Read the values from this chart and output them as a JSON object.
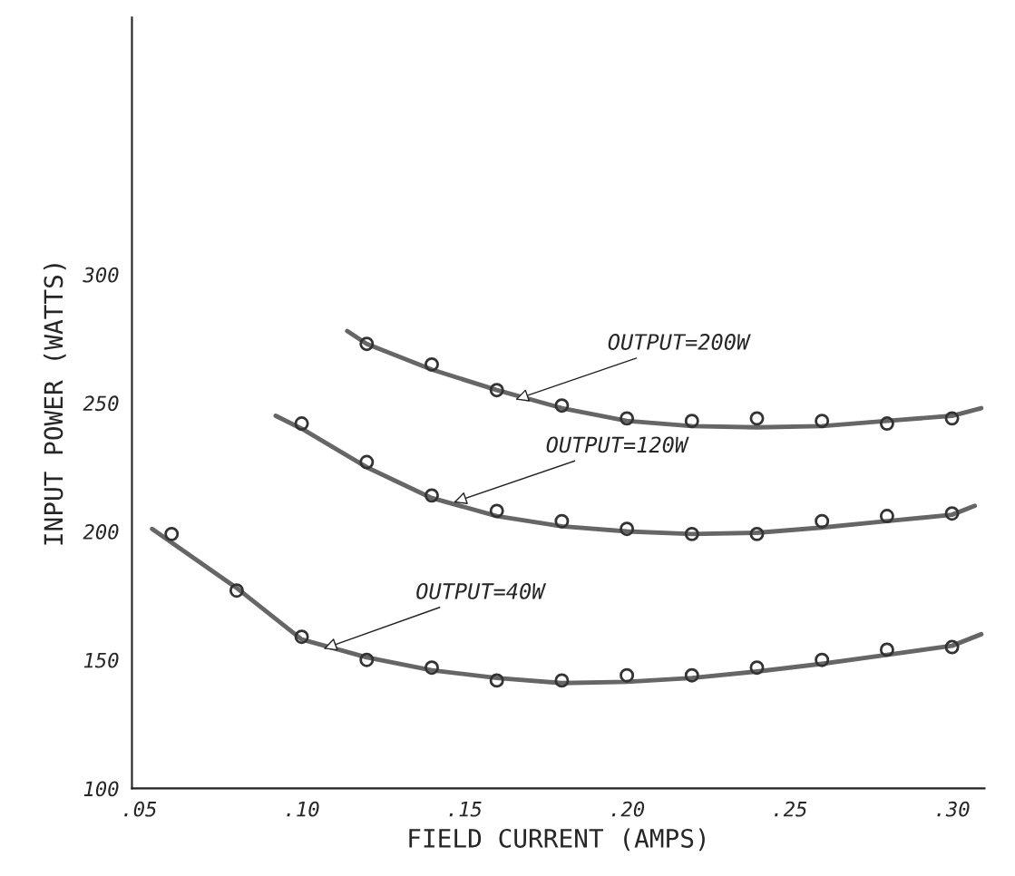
{
  "chart_data": {
    "type": "line",
    "xlabel": "FIELD CURRENT (AMPS)",
    "ylabel": "INPUT POWER (WATTS)",
    "xlim": [
      0.0478,
      0.31
    ],
    "ylim": [
      100,
      400
    ],
    "xticks": [
      {
        "value": 0.05,
        "label": ".05"
      },
      {
        "value": 0.1,
        "label": ".10"
      },
      {
        "value": 0.15,
        "label": ".15"
      },
      {
        "value": 0.2,
        "label": ".20"
      },
      {
        "value": 0.25,
        "label": ".25"
      },
      {
        "value": 0.3,
        "label": ".30"
      }
    ],
    "yticks": [
      100,
      150,
      200,
      250,
      300
    ],
    "line_style": "solid",
    "grid": false,
    "legend": false,
    "series": [
      {
        "type": "scatter",
        "marker": "circle",
        "color": "#333333",
        "x": [
          0.06,
          0.08,
          0.1,
          0.12,
          0.14,
          0.16,
          0.18,
          0.2,
          0.22,
          0.24,
          0.26,
          0.28,
          0.3
        ],
        "values": [
          199,
          177,
          159,
          150,
          147,
          142,
          142,
          144,
          144,
          147,
          150,
          154,
          155
        ]
      },
      {
        "type": "scatter",
        "marker": "circle",
        "color": "#333333",
        "x": [
          0.1,
          0.12,
          0.14,
          0.16,
          0.18,
          0.2,
          0.22,
          0.24,
          0.26,
          0.28,
          0.3
        ],
        "values": [
          242,
          227,
          214,
          208,
          204,
          201,
          199,
          199,
          204,
          206,
          207
        ]
      },
      {
        "type": "scatter",
        "marker": "circle",
        "color": "#333333",
        "x": [
          0.12,
          0.14,
          0.16,
          0.18,
          0.2,
          0.22,
          0.24,
          0.26,
          0.28,
          0.3
        ],
        "values": [
          273,
          265,
          255,
          249,
          244,
          243,
          244,
          243,
          242,
          244
        ]
      },
      {
        "color": "#666666",
        "x": [
          0.054,
          0.08,
          0.1,
          0.12,
          0.14,
          0.16,
          0.18,
          0.2,
          0.22,
          0.24,
          0.26,
          0.28,
          0.3,
          0.309
        ],
        "values": [
          201,
          178,
          158,
          151,
          146,
          143,
          141,
          141.5,
          143,
          145.5,
          148.5,
          152,
          155.5,
          160
        ]
      },
      {
        "color": "#666666",
        "x": [
          0.092,
          0.1,
          0.12,
          0.14,
          0.16,
          0.18,
          0.2,
          0.22,
          0.24,
          0.26,
          0.28,
          0.3,
          0.307
        ],
        "values": [
          245,
          240,
          225,
          213,
          206,
          202,
          200,
          199,
          199.5,
          201.5,
          204,
          206.5,
          210
        ]
      },
      {
        "color": "#666666",
        "x": [
          0.114,
          0.12,
          0.14,
          0.16,
          0.18,
          0.2,
          0.22,
          0.24,
          0.26,
          0.28,
          0.3,
          0.309
        ],
        "values": [
          278,
          273,
          263,
          255,
          248,
          243,
          241,
          240.5,
          241,
          243,
          245,
          248
        ]
      }
    ],
    "annotations": [
      {
        "text": "OUTPUT=200W",
        "x": 0.165,
        "y": 251
      },
      {
        "text": "OUTPUT=120W",
        "x": 0.146,
        "y": 211
      },
      {
        "text": "OUTPUT=40W",
        "x": 0.106,
        "y": 154
      }
    ]
  }
}
